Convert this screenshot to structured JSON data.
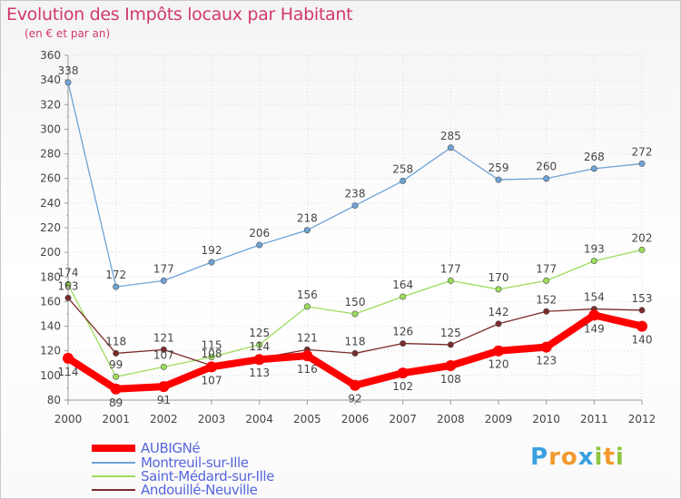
{
  "chart_data": {
    "type": "line",
    "title": "Evolution des Impôts locaux par Habitant",
    "subtitle": "(en € et par an)",
    "x": [
      "2000",
      "2001",
      "2002",
      "2003",
      "2004",
      "2005",
      "2006",
      "2007",
      "2008",
      "2009",
      "2010",
      "2011",
      "2012"
    ],
    "ylim": [
      80,
      360
    ],
    "yticks": [
      80,
      100,
      120,
      140,
      160,
      180,
      200,
      220,
      240,
      260,
      280,
      300,
      320,
      340,
      360
    ],
    "grid": true,
    "legend_position": "bottom-left",
    "series": [
      {
        "name": "AUBIGNé",
        "color": "#ff0000",
        "values": [
          114,
          89,
          91,
          107,
          113,
          116,
          92,
          102,
          108,
          120,
          123,
          149,
          140
        ]
      },
      {
        "name": "Montreuil-sur-Ille",
        "color": "#6ea3d6",
        "values": [
          338,
          172,
          177,
          192,
          206,
          218,
          238,
          258,
          285,
          259,
          260,
          268,
          272
        ]
      },
      {
        "name": "Saint-Médard-sur-Ille",
        "color": "#9bdc5a",
        "values": [
          174,
          99,
          107,
          115,
          125,
          156,
          150,
          164,
          177,
          170,
          177,
          193,
          202
        ]
      },
      {
        "name": "Andouillé-Neuville",
        "color": "#7a2a2a",
        "values": [
          163,
          118,
          121,
          108,
          114,
          121,
          118,
          126,
          125,
          142,
          152,
          154,
          153
        ]
      }
    ]
  },
  "legend_text_color": "#5566dd",
  "logo": {
    "letters": [
      "P",
      "r",
      "o",
      "x",
      "i",
      "t",
      "i"
    ],
    "colors": [
      "#3aa0e0",
      "#f29a2e",
      "#f29a2e",
      "#3aa0e0",
      "#8dc63f",
      "#f29a2e",
      "#8dc63f"
    ]
  }
}
